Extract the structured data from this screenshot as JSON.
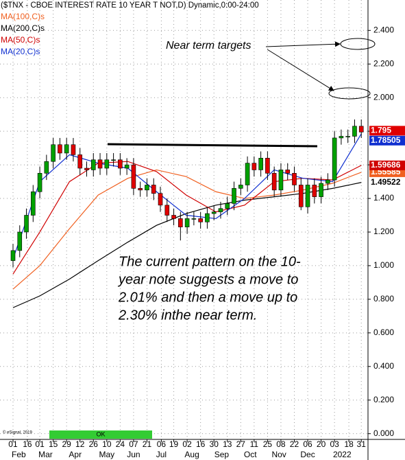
{
  "chart_data": {
    "type": "candlestick",
    "title": "($TNX - CBOE INTEREST RATE 10 YEAR T NOT,D) Dynamic,0:00-24:00",
    "copyright": "© eSignal, 2019",
    "status": "OK",
    "annotations": {
      "targets": "Near term targets",
      "body": [
        "The current pattern on the 10-",
        "year note suggests a move to",
        "2.01% and then a move up to",
        "2.30% inthe near term."
      ]
    },
    "xlim": [
      -13.6,
      371
    ],
    "xticks": [
      {
        "value": 0,
        "label": "01"
      },
      {
        "value": 15,
        "label": "16"
      },
      {
        "value": 28,
        "label": "01"
      },
      {
        "value": 42,
        "label": "15"
      },
      {
        "value": 56,
        "label": "29"
      },
      {
        "value": 70,
        "label": "12"
      },
      {
        "value": 84,
        "label": "26"
      },
      {
        "value": 98,
        "label": "10"
      },
      {
        "value": 112,
        "label": "24"
      },
      {
        "value": 126,
        "label": "07"
      },
      {
        "value": 140,
        "label": "21"
      },
      {
        "value": 155,
        "label": "06"
      },
      {
        "value": 168,
        "label": "19"
      },
      {
        "value": 182,
        "label": "02"
      },
      {
        "value": 196,
        "label": "16"
      },
      {
        "value": 210,
        "label": "30"
      },
      {
        "value": 224,
        "label": "13"
      },
      {
        "value": 238,
        "label": "27"
      },
      {
        "value": 252,
        "label": "11"
      },
      {
        "value": 266,
        "label": "25"
      },
      {
        "value": 280,
        "label": "08"
      },
      {
        "value": 294,
        "label": "22"
      },
      {
        "value": 308,
        "label": "06"
      },
      {
        "value": 322,
        "label": "20"
      },
      {
        "value": 336,
        "label": "03"
      },
      {
        "value": 351,
        "label": "18"
      },
      {
        "value": 364,
        "label": "31"
      }
    ],
    "month_ticks": [
      {
        "value": 6,
        "label": "Feb"
      },
      {
        "value": 34,
        "label": "Mar"
      },
      {
        "value": 65,
        "label": "Apr"
      },
      {
        "value": 98,
        "label": "May"
      },
      {
        "value": 126,
        "label": "Jun"
      },
      {
        "value": 155,
        "label": "Jul"
      },
      {
        "value": 187,
        "label": "Aug"
      },
      {
        "value": 218,
        "label": "Sep"
      },
      {
        "value": 248,
        "label": "Oct"
      },
      {
        "value": 278,
        "label": "Nov"
      },
      {
        "value": 308,
        "label": "Dec"
      },
      {
        "value": 344,
        "label": "2022"
      }
    ],
    "ylim": [
      -0.034,
      2.581
    ],
    "yticks": [
      {
        "value": 0,
        "label": "0.000"
      },
      {
        "value": 0.2,
        "label": "0.200"
      },
      {
        "value": 0.4,
        "label": "0.400"
      },
      {
        "value": 0.6,
        "label": "0.600"
      },
      {
        "value": 0.8,
        "label": "0.800"
      },
      {
        "value": 1.0,
        "label": "1.000"
      },
      {
        "value": 1.2,
        "label": "1.200"
      },
      {
        "value": 1.4,
        "label": "1.400"
      },
      {
        "value": 1.6,
        "label": "1.600"
      },
      {
        "value": 1.8,
        "label": "1.800"
      },
      {
        "value": 2.0,
        "label": "2.000"
      },
      {
        "value": 2.2,
        "label": "2.200"
      },
      {
        "value": 2.4,
        "label": "2.400"
      }
    ],
    "grid": true,
    "candles": {
      "up_color": "#00a000",
      "down_color": "#e00000",
      "last_color": "#e00000",
      "last_label": "1.795",
      "x": [
        0,
        7,
        14,
        21,
        28,
        35,
        42,
        49,
        56,
        63,
        70,
        77,
        84,
        91,
        98,
        105,
        112,
        119,
        126,
        133,
        140,
        147,
        154,
        161,
        168,
        175,
        182,
        189,
        196,
        203,
        210,
        217,
        224,
        231,
        238,
        245,
        252,
        259,
        266,
        273,
        280,
        287,
        294,
        301,
        308,
        315,
        322,
        329,
        336,
        343,
        350,
        357,
        364
      ],
      "open": [
        1.03,
        1.09,
        1.2,
        1.3,
        1.44,
        1.55,
        1.62,
        1.72,
        1.67,
        1.72,
        1.66,
        1.58,
        1.57,
        1.63,
        1.58,
        1.63,
        1.63,
        1.58,
        1.6,
        1.46,
        1.45,
        1.48,
        1.43,
        1.36,
        1.3,
        1.28,
        1.23,
        1.28,
        1.28,
        1.26,
        1.31,
        1.32,
        1.34,
        1.37,
        1.46,
        1.48,
        1.61,
        1.57,
        1.64,
        1.55,
        1.45,
        1.57,
        1.55,
        1.48,
        1.35,
        1.48,
        1.41,
        1.49,
        1.51,
        1.76,
        1.77,
        1.77,
        1.83
      ],
      "high": [
        1.13,
        1.24,
        1.34,
        1.48,
        1.59,
        1.66,
        1.76,
        1.76,
        1.76,
        1.76,
        1.7,
        1.62,
        1.67,
        1.67,
        1.67,
        1.67,
        1.67,
        1.64,
        1.64,
        1.5,
        1.52,
        1.52,
        1.47,
        1.4,
        1.34,
        1.32,
        1.32,
        1.32,
        1.32,
        1.35,
        1.36,
        1.38,
        1.41,
        1.5,
        1.52,
        1.65,
        1.65,
        1.68,
        1.68,
        1.59,
        1.61,
        1.61,
        1.59,
        1.52,
        1.52,
        1.52,
        1.53,
        1.55,
        1.8,
        1.81,
        1.81,
        1.87,
        1.87
      ],
      "low": [
        0.99,
        1.05,
        1.16,
        1.26,
        1.4,
        1.51,
        1.58,
        1.63,
        1.63,
        1.62,
        1.54,
        1.53,
        1.53,
        1.54,
        1.54,
        1.59,
        1.54,
        1.54,
        1.42,
        1.41,
        1.41,
        1.39,
        1.32,
        1.26,
        1.24,
        1.15,
        1.19,
        1.24,
        1.22,
        1.22,
        1.27,
        1.28,
        1.3,
        1.33,
        1.42,
        1.44,
        1.53,
        1.53,
        1.51,
        1.41,
        1.41,
        1.51,
        1.44,
        1.33,
        1.31,
        1.37,
        1.37,
        1.45,
        1.47,
        1.72,
        1.73,
        1.73,
        1.76
      ],
      "close": [
        1.09,
        1.2,
        1.3,
        1.44,
        1.55,
        1.62,
        1.72,
        1.67,
        1.72,
        1.66,
        1.58,
        1.57,
        1.63,
        1.58,
        1.63,
        1.63,
        1.58,
        1.6,
        1.46,
        1.45,
        1.48,
        1.43,
        1.36,
        1.3,
        1.28,
        1.23,
        1.28,
        1.28,
        1.26,
        1.31,
        1.32,
        1.34,
        1.37,
        1.46,
        1.48,
        1.61,
        1.57,
        1.64,
        1.55,
        1.45,
        1.57,
        1.55,
        1.48,
        1.35,
        1.48,
        1.41,
        1.49,
        1.51,
        1.76,
        1.77,
        1.77,
        1.83,
        1.795
      ]
    },
    "series": [
      {
        "name": "MA(100,C)s",
        "color": "#f06020",
        "label_color": "#ffffff",
        "last_label": "1.55585",
        "x": [
          0,
          28,
          59,
          89,
          120,
          150,
          181,
          212,
          242,
          273,
          303,
          334,
          364
        ],
        "values": [
          0.86,
          1.0,
          1.22,
          1.42,
          1.52,
          1.57,
          1.53,
          1.44,
          1.4,
          1.42,
          1.45,
          1.49,
          1.55585
        ]
      },
      {
        "name": "MA(200,C)s",
        "color": "#000000",
        "label_color": "#000000",
        "last_label": "1.49522",
        "x": [
          0,
          28,
          59,
          89,
          120,
          150,
          181,
          212,
          242,
          273,
          303,
          334,
          364
        ],
        "values": [
          0.75,
          0.82,
          0.92,
          1.03,
          1.14,
          1.24,
          1.31,
          1.36,
          1.39,
          1.41,
          1.43,
          1.46,
          1.49522
        ]
      },
      {
        "name": "MA(50,C)s",
        "color": "#d00000",
        "label_color": "#ffffff",
        "last_label": "1.59686",
        "x": [
          0,
          28,
          59,
          89,
          120,
          150,
          181,
          212,
          242,
          273,
          303,
          334,
          364
        ],
        "values": [
          0.95,
          1.2,
          1.5,
          1.61,
          1.62,
          1.56,
          1.42,
          1.32,
          1.36,
          1.5,
          1.52,
          1.51,
          1.59686
        ]
      },
      {
        "name": "MA(20,C)s",
        "color": "#1030d0",
        "label_color": "#ffffff",
        "last_label": "1.78505",
        "x": [
          0,
          28,
          59,
          89,
          120,
          150,
          181,
          212,
          242,
          273,
          303,
          334,
          364
        ],
        "values": [
          1.04,
          1.5,
          1.66,
          1.61,
          1.58,
          1.44,
          1.3,
          1.28,
          1.4,
          1.57,
          1.52,
          1.5,
          1.78505
        ]
      }
    ]
  }
}
